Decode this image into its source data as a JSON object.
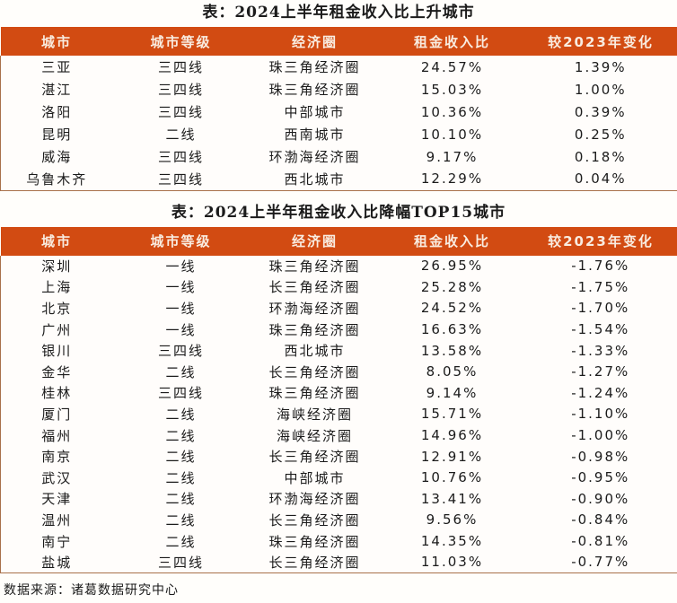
{
  "theme": {
    "header_bg": "#d24b12",
    "header_text": "#f9ece0",
    "body_border": "#a8704a",
    "text": "#1b1b1b",
    "page_bg": "#fffefb"
  },
  "columns": [
    "城市",
    "城市等级",
    "经济圈",
    "租金收入比",
    "较2023年变化"
  ],
  "tables": [
    {
      "title": "表：2024上半年租金收入比上升城市",
      "rows": [
        [
          "三亚",
          "三四线",
          "珠三角经济圈",
          "24.57%",
          "1.39%"
        ],
        [
          "湛江",
          "三四线",
          "珠三角经济圈",
          "15.03%",
          "1.00%"
        ],
        [
          "洛阳",
          "三四线",
          "中部城市",
          "10.36%",
          "0.39%"
        ],
        [
          "昆明",
          "二线",
          "西南城市",
          "10.10%",
          "0.25%"
        ],
        [
          "威海",
          "三四线",
          "环渤海经济圈",
          "9.17%",
          "0.18%"
        ],
        [
          "乌鲁木齐",
          "三四线",
          "西北城市",
          "12.29%",
          "0.04%"
        ]
      ]
    },
    {
      "title": "表：2024上半年租金收入比降幅TOP15城市",
      "rows": [
        [
          "深圳",
          "一线",
          "珠三角经济圈",
          "26.95%",
          "-1.76%"
        ],
        [
          "上海",
          "一线",
          "长三角经济圈",
          "25.28%",
          "-1.75%"
        ],
        [
          "北京",
          "一线",
          "环渤海经济圈",
          "24.52%",
          "-1.70%"
        ],
        [
          "广州",
          "一线",
          "珠三角经济圈",
          "16.63%",
          "-1.54%"
        ],
        [
          "银川",
          "三四线",
          "西北城市",
          "13.58%",
          "-1.33%"
        ],
        [
          "金华",
          "二线",
          "长三角经济圈",
          "8.05%",
          "-1.27%"
        ],
        [
          "桂林",
          "三四线",
          "珠三角经济圈",
          "9.14%",
          "-1.24%"
        ],
        [
          "厦门",
          "二线",
          "海峡经济圈",
          "15.71%",
          "-1.10%"
        ],
        [
          "福州",
          "二线",
          "海峡经济圈",
          "14.96%",
          "-1.00%"
        ],
        [
          "南京",
          "二线",
          "长三角经济圈",
          "12.91%",
          "-0.98%"
        ],
        [
          "武汉",
          "二线",
          "中部城市",
          "10.76%",
          "-0.95%"
        ],
        [
          "天津",
          "二线",
          "环渤海经济圈",
          "13.41%",
          "-0.90%"
        ],
        [
          "温州",
          "二线",
          "长三角经济圈",
          "9.56%",
          "-0.84%"
        ],
        [
          "南宁",
          "二线",
          "珠三角经济圈",
          "14.35%",
          "-0.81%"
        ],
        [
          "盐城",
          "三四线",
          "长三角经济圈",
          "11.03%",
          "-0.77%"
        ]
      ]
    }
  ],
  "footer": {
    "source_note": "数据来源：诸葛数据研究中心"
  }
}
